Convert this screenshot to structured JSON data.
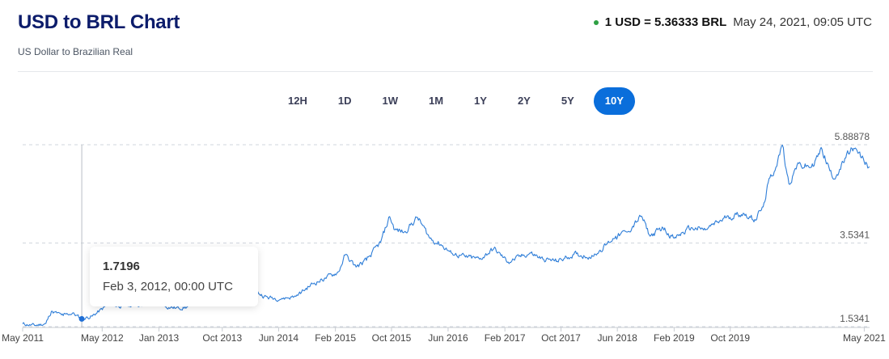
{
  "header": {
    "title": "USD to BRL Chart",
    "subtitle": "US Dollar to Brazilian Real",
    "rate_label": "1 USD = 5.36333 BRL",
    "timestamp": "May 24, 2021, 09:05 UTC",
    "status_color": "#2ea043"
  },
  "tabs": [
    {
      "label": "12H",
      "active": false
    },
    {
      "label": "1D",
      "active": false
    },
    {
      "label": "1W",
      "active": false
    },
    {
      "label": "1M",
      "active": false
    },
    {
      "label": "1Y",
      "active": false
    },
    {
      "label": "2Y",
      "active": false
    },
    {
      "label": "5Y",
      "active": false
    },
    {
      "label": "10Y",
      "active": true
    }
  ],
  "tooltip": {
    "value": "1.7196",
    "date": "Feb 3, 2012, 00:00 UTC"
  },
  "chart_data": {
    "type": "line",
    "title": "",
    "xlabel": "",
    "ylabel": "",
    "line_color": "#2f7ed8",
    "y_ticks": [
      5.88878,
      3.5341,
      1.5341
    ],
    "y_tick_labels": [
      "5.88878",
      "3.5341",
      "1.5341"
    ],
    "ylim": [
      1.5341,
      5.88878
    ],
    "x_tick_labels": [
      "May 2011",
      "May 2012",
      "Jan 2013",
      "Oct 2013",
      "Jun 2014",
      "Feb 2015",
      "Oct 2015",
      "Jun 2016",
      "Feb 2017",
      "Oct 2017",
      "Jun 2018",
      "Feb 2019",
      "Oct 2019",
      "May 2021"
    ],
    "x_tick_dates": [
      "2011-05-24",
      "2012-05-01",
      "2013-01-01",
      "2013-10-01",
      "2014-06-01",
      "2015-02-01",
      "2015-10-01",
      "2016-06-01",
      "2017-02-01",
      "2017-10-01",
      "2018-06-01",
      "2019-02-01",
      "2019-10-01",
      "2021-05-01"
    ],
    "highlight_point": {
      "date": "2012-02-03",
      "value": 1.7196
    },
    "series": [
      {
        "points": [
          [
            "2011-05-24",
            1.6
          ],
          [
            "2011-07-15",
            1.56
          ],
          [
            "2011-09-01",
            1.61
          ],
          [
            "2011-09-25",
            1.9
          ],
          [
            "2011-11-15",
            1.8
          ],
          [
            "2011-12-25",
            1.86
          ],
          [
            "2012-02-03",
            1.7196
          ],
          [
            "2012-03-20",
            1.79
          ],
          [
            "2012-05-25",
            2.05
          ],
          [
            "2012-08-15",
            2.03
          ],
          [
            "2012-11-25",
            2.1
          ],
          [
            "2013-01-20",
            2.03
          ],
          [
            "2013-03-15",
            1.98
          ],
          [
            "2013-05-01",
            2.0
          ],
          [
            "2013-06-15",
            2.2
          ],
          [
            "2013-08-21",
            2.44
          ],
          [
            "2013-10-15",
            2.18
          ],
          [
            "2013-12-15",
            2.37
          ],
          [
            "2014-02-01",
            2.42
          ],
          [
            "2014-04-15",
            2.23
          ],
          [
            "2014-06-15",
            2.21
          ],
          [
            "2014-08-15",
            2.26
          ],
          [
            "2014-10-25",
            2.56
          ],
          [
            "2014-12-15",
            2.68
          ],
          [
            "2015-02-15",
            2.85
          ],
          [
            "2015-03-15",
            3.25
          ],
          [
            "2015-05-01",
            2.96
          ],
          [
            "2015-06-15",
            3.12
          ],
          [
            "2015-08-15",
            3.55
          ],
          [
            "2015-09-23",
            4.17
          ],
          [
            "2015-10-15",
            3.85
          ],
          [
            "2015-11-25",
            3.8
          ],
          [
            "2016-01-21",
            4.15
          ],
          [
            "2016-03-15",
            3.65
          ],
          [
            "2016-05-01",
            3.5
          ],
          [
            "2016-06-15",
            3.3
          ],
          [
            "2016-08-15",
            3.2
          ],
          [
            "2016-10-15",
            3.15
          ],
          [
            "2016-12-15",
            3.4
          ],
          [
            "2017-02-15",
            3.08
          ],
          [
            "2017-05-20",
            3.3
          ],
          [
            "2017-07-15",
            3.15
          ],
          [
            "2017-09-15",
            3.1
          ],
          [
            "2017-11-25",
            3.26
          ],
          [
            "2018-02-15",
            3.22
          ],
          [
            "2018-04-15",
            3.5
          ],
          [
            "2018-05-25",
            3.7
          ],
          [
            "2018-07-15",
            3.8
          ],
          [
            "2018-09-13",
            4.18
          ],
          [
            "2018-10-20",
            3.7
          ],
          [
            "2018-12-15",
            3.9
          ],
          [
            "2019-02-01",
            3.65
          ],
          [
            "2019-04-15",
            3.9
          ],
          [
            "2019-06-15",
            3.85
          ],
          [
            "2019-09-15",
            4.15
          ],
          [
            "2019-11-26",
            4.25
          ],
          [
            "2020-01-15",
            4.1
          ],
          [
            "2020-02-20",
            4.4
          ],
          [
            "2020-03-20",
            5.1
          ],
          [
            "2020-04-15",
            5.35
          ],
          [
            "2020-05-13",
            5.88
          ],
          [
            "2020-06-10",
            4.95
          ],
          [
            "2020-07-15",
            5.4
          ],
          [
            "2020-09-15",
            5.35
          ],
          [
            "2020-10-31",
            5.78
          ],
          [
            "2020-12-15",
            5.1
          ],
          [
            "2021-01-15",
            5.3
          ],
          [
            "2021-03-09",
            5.8
          ],
          [
            "2021-04-15",
            5.6
          ],
          [
            "2021-05-24",
            5.36
          ]
        ]
      }
    ]
  }
}
